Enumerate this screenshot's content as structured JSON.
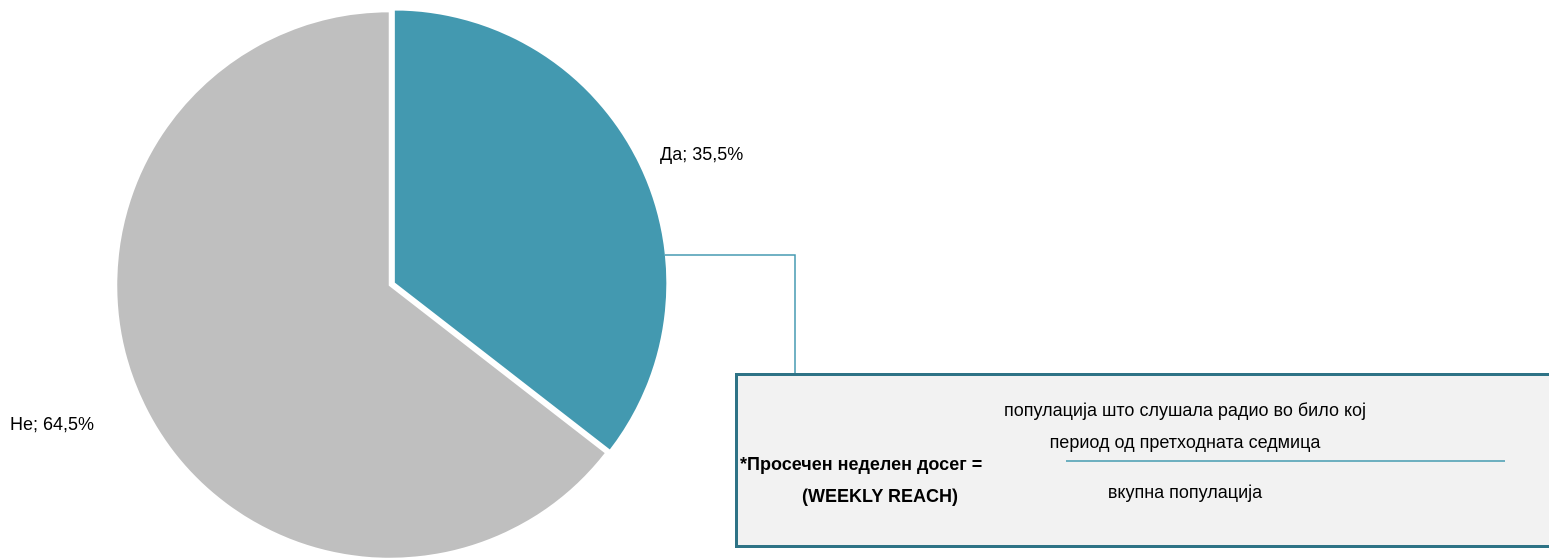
{
  "chart_data": {
    "type": "pie",
    "categories": [
      "Да",
      "Не"
    ],
    "values": [
      35.5,
      64.5
    ],
    "value_labels": [
      "Да; 35,5%",
      "Не; 64,5%"
    ],
    "colors": [
      "#4399b0",
      "#bfbfbf"
    ],
    "annotation": {
      "name": "*Просечен неделен досег =",
      "subname": "(WEEKLY REACH)",
      "numerator": [
        "популација што слушала радио во било кој",
        "период од претходната седмица"
      ],
      "denominator": "вкупна популација"
    }
  }
}
